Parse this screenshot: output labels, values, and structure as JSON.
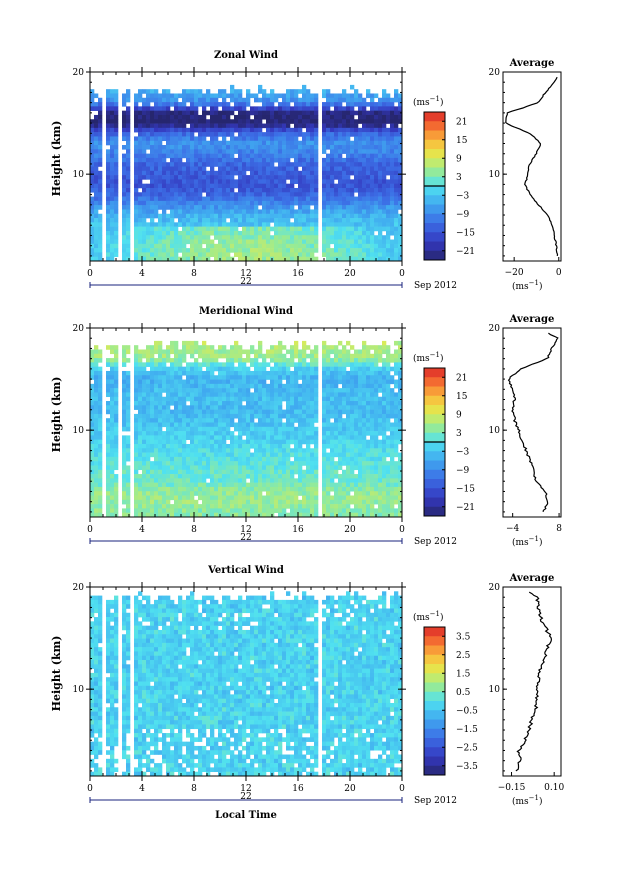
{
  "chart_data": [
    {
      "type": "heatmap",
      "title": "Zonal Wind",
      "ylabel": "Height (km)",
      "y_tick_labels": [
        "20",
        "10"
      ],
      "ylim": [
        1.5,
        20
      ],
      "x_tick_labels": [
        "0",
        "4",
        "8",
        "12",
        "16",
        "20",
        "0"
      ],
      "xlim": [
        0,
        24
      ],
      "date_label": "22",
      "month_label": "Sep 2012",
      "colorbar": {
        "unit_label": "(ms",
        "unit_exp": "−1",
        "ticks": [
          "21",
          "15",
          "9",
          "3",
          "−3",
          "−9",
          "−15",
          "−21"
        ],
        "range": [
          -24,
          24
        ],
        "zero_line": 0
      },
      "profile": {
        "title": "Average",
        "y_tick_labels": [
          "20",
          "10"
        ],
        "x_tick_labels": [
          "−20",
          "0"
        ],
        "xlim": [
          -25,
          1
        ],
        "unit_label": "(ms",
        "unit_exp": "−1",
        "heights": [
          2,
          3,
          4,
          5,
          6,
          7,
          8,
          9,
          10,
          11,
          12,
          13,
          14,
          15,
          16,
          17,
          18,
          19,
          19.5
        ],
        "values": [
          -0.5,
          -1,
          -2,
          -3,
          -5,
          -9,
          -13,
          -15,
          -14,
          -13,
          -10,
          -8,
          -13,
          -24,
          -23,
          -9,
          -6,
          -2,
          -0.5
        ]
      }
    },
    {
      "type": "heatmap",
      "title": "Meridional Wind",
      "ylabel": "Height (km)",
      "y_tick_labels": [
        "20",
        "10"
      ],
      "ylim": [
        1.5,
        20
      ],
      "x_tick_labels": [
        "0",
        "4",
        "8",
        "12",
        "16",
        "20",
        "0"
      ],
      "xlim": [
        0,
        24
      ],
      "date_label": "22",
      "month_label": "Sep 2012",
      "colorbar": {
        "unit_label": "(ms",
        "unit_exp": "−1",
        "ticks": [
          "21",
          "15",
          "9",
          "3",
          "−3",
          "−9",
          "−15",
          "−21"
        ],
        "range": [
          -24,
          24
        ],
        "zero_line": 0
      },
      "profile": {
        "title": "Average",
        "y_tick_labels": [
          "20",
          "10"
        ],
        "x_tick_labels": [
          "−4",
          "8"
        ],
        "xlim": [
          -6.5,
          8.5
        ],
        "unit_label": "(ms",
        "unit_exp": "−1",
        "heights": [
          2,
          3,
          4,
          5,
          6,
          7,
          8,
          9,
          10,
          11,
          12,
          13,
          14,
          15,
          16,
          17,
          18,
          19,
          19.5
        ],
        "values": [
          4,
          5,
          4.5,
          2,
          1.5,
          0.5,
          -0.5,
          -1.5,
          -2.5,
          -3.5,
          -4,
          -3.5,
          -4,
          -5,
          -2,
          5,
          6,
          7.5,
          5
        ]
      }
    },
    {
      "type": "heatmap",
      "title": "Vertical Wind",
      "ylabel": "Height (km)",
      "y_tick_labels": [
        "20",
        "10"
      ],
      "ylim": [
        1.5,
        20
      ],
      "x_tick_labels": [
        "0",
        "4",
        "8",
        "12",
        "16",
        "20",
        "0"
      ],
      "xlim": [
        0,
        24
      ],
      "date_label": "22",
      "month_label": "Sep 2012",
      "xlabel": "Local Time",
      "colorbar": {
        "unit_label": "(ms",
        "unit_exp": "−1",
        "ticks": [
          "3.5",
          "2.5",
          "1.5",
          "0.5",
          "−0.5",
          "−1.5",
          "−2.5",
          "−3.5"
        ],
        "range": [
          -4,
          4
        ],
        "zero_line": null
      },
      "profile": {
        "title": "Average",
        "y_tick_labels": [
          "20",
          "10"
        ],
        "x_tick_labels": [
          "−0.15",
          "0.10"
        ],
        "xlim": [
          -0.2,
          0.14
        ],
        "unit_label": "(ms",
        "unit_exp": "−1",
        "heights": [
          2,
          3,
          4,
          5,
          6,
          7,
          8,
          9,
          10,
          11,
          12,
          13,
          14,
          15,
          16,
          17,
          18,
          19,
          19.5
        ],
        "values": [
          -0.12,
          -0.1,
          -0.11,
          -0.07,
          -0.05,
          -0.03,
          -0.01,
          0.0,
          0.0,
          0.01,
          0.02,
          0.04,
          0.06,
          0.08,
          0.05,
          0.02,
          0.01,
          0.0,
          -0.05
        ]
      }
    }
  ]
}
